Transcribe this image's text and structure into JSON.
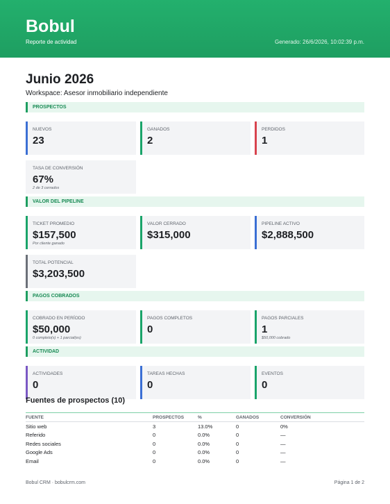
{
  "header": {
    "brand": "Bobul",
    "subtitle": "Reporte de actividad",
    "generated": "Generado: 26/6/2026, 10:02:39 p.m."
  },
  "report": {
    "title": "Junio 2026",
    "workspace": "Workspace: Asesor inmobiliario independiente"
  },
  "sections": [
    {
      "title": "PROSPECTOS",
      "cards": [
        {
          "label": "NUEVOS",
          "value": "23",
          "accent": "#3b6fd4"
        },
        {
          "label": "GANADOS",
          "value": "2",
          "accent": "#1aa46a"
        },
        {
          "label": "PERDIDOS",
          "value": "1",
          "accent": "#d8434e"
        },
        {
          "label": "TASA DE CONVERSIÓN",
          "value": "67%",
          "note": "2 de 3 cerrados"
        }
      ]
    },
    {
      "title": "VALOR DEL PIPELINE",
      "cards": [
        {
          "label": "TICKET PROMEDIO",
          "value": "$157,500",
          "note": "Por cliente ganado",
          "accent": "#1aa46a"
        },
        {
          "label": "VALOR CERRADO",
          "value": "$315,000",
          "accent": "#1aa46a"
        },
        {
          "label": "PIPELINE ACTIVO",
          "value": "$2,888,500",
          "accent": "#3b6fd4"
        },
        {
          "label": "TOTAL POTENCIAL",
          "value": "$3,203,500",
          "accent": "#6b7078"
        }
      ]
    },
    {
      "title": "PAGOS COBRADOS",
      "cards": [
        {
          "label": "COBRADO EN PERÍODO",
          "value": "$50,000",
          "note": "0 completo(s) + 1 parcial(es)",
          "accent": "#1aa46a"
        },
        {
          "label": "PAGOS COMPLETOS",
          "value": "0",
          "accent": "#1aa46a"
        },
        {
          "label": "PAGOS PARCIALES",
          "value": "1",
          "note": "$50,000 cobrado",
          "accent": "#1aa46a"
        }
      ]
    },
    {
      "title": "ACTIVIDAD",
      "cards": [
        {
          "label": "ACTIVIDADES",
          "value": "0",
          "accent": "#7a58c4"
        },
        {
          "label": "TAREAS HECHAS",
          "value": "0",
          "accent": "#3b6fd4"
        },
        {
          "label": "EVENTOS",
          "value": "0",
          "accent": "#1aa46a"
        }
      ]
    }
  ],
  "table": {
    "title": "Fuentes de prospectos (10)",
    "columns": [
      "FUENTE",
      "PROSPECTOS",
      "%",
      "GANADOS",
      "CONVERSIÓN"
    ],
    "rows": [
      [
        "Sitio web",
        "3",
        "13.0%",
        "0",
        "0%"
      ],
      [
        "Referido",
        "0",
        "0.0%",
        "0",
        "—"
      ],
      [
        "Redes sociales",
        "0",
        "0.0%",
        "0",
        "—"
      ],
      [
        "Google Ads",
        "0",
        "0.0%",
        "0",
        "—"
      ],
      [
        "Email",
        "0",
        "0.0%",
        "0",
        "—"
      ]
    ]
  },
  "footer": {
    "left": "Bobul CRM · bobulcrm.com",
    "right": "Página 1 de 2"
  }
}
